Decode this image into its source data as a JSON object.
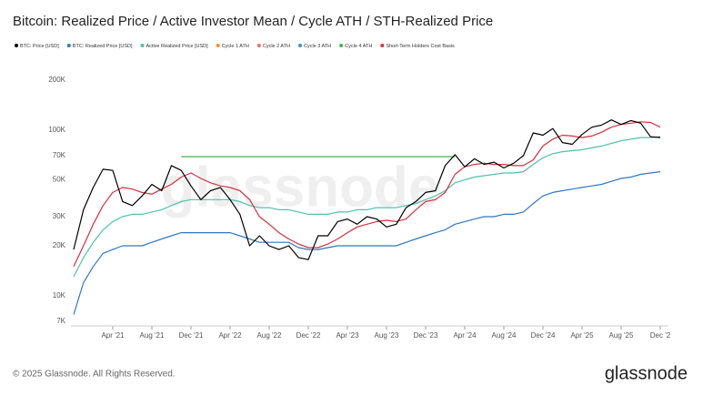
{
  "chart_data": {
    "type": "line",
    "title": "Bitcoin: Realized Price / Active Investor Mean / Cycle ATH / STH-Realized Price",
    "watermark": "glassnode",
    "footer": "© 2025 Glassnode. All Rights Reserved.",
    "logo": "glassnode",
    "y_scale": "log",
    "grid": false,
    "legend_position": "top",
    "x": [
      "2020-12",
      "2021-01",
      "2021-02",
      "2021-03",
      "2021-04",
      "2021-05",
      "2021-06",
      "2021-07",
      "2021-08",
      "2021-09",
      "2021-10",
      "2021-11",
      "2021-12",
      "2022-01",
      "2022-02",
      "2022-03",
      "2022-04",
      "2022-05",
      "2022-06",
      "2022-07",
      "2022-08",
      "2022-09",
      "2022-10",
      "2022-11",
      "2022-12",
      "2023-01",
      "2023-02",
      "2023-03",
      "2023-04",
      "2023-05",
      "2023-06",
      "2023-07",
      "2023-08",
      "2023-09",
      "2023-10",
      "2023-11",
      "2023-12",
      "2024-01",
      "2024-02",
      "2024-03",
      "2024-04",
      "2024-05",
      "2024-06",
      "2024-07",
      "2024-08",
      "2024-09",
      "2024-10",
      "2024-11",
      "2024-12",
      "2025-01",
      "2025-02",
      "2025-03",
      "2025-04",
      "2025-05",
      "2025-06",
      "2025-07",
      "2025-08",
      "2025-09",
      "2025-10",
      "2025-11",
      "2025-12"
    ],
    "xlim": [
      "2020-12",
      "2025-12"
    ],
    "xticks": [
      {
        "value": "2021-04",
        "label": "Apr '21"
      },
      {
        "value": "2021-08",
        "label": "Aug '21"
      },
      {
        "value": "2021-12",
        "label": "Dec '21"
      },
      {
        "value": "2022-04",
        "label": "Apr '22"
      },
      {
        "value": "2022-08",
        "label": "Aug '22"
      },
      {
        "value": "2022-12",
        "label": "Dec '22"
      },
      {
        "value": "2023-04",
        "label": "Apr '23"
      },
      {
        "value": "2023-08",
        "label": "Aug '23"
      },
      {
        "value": "2023-12",
        "label": "Dec '23"
      },
      {
        "value": "2024-04",
        "label": "Apr '24"
      },
      {
        "value": "2024-08",
        "label": "Aug '24"
      },
      {
        "value": "2024-12",
        "label": "Dec '24"
      },
      {
        "value": "2025-04",
        "label": "Apr '25"
      },
      {
        "value": "2025-08",
        "label": "Aug '25"
      },
      {
        "value": "2025-12",
        "label": "Dec '2"
      }
    ],
    "ylim": [
      7000,
      200000
    ],
    "yticks": [
      {
        "value": 7000,
        "label": "7K"
      },
      {
        "value": 10000,
        "label": "10K"
      },
      {
        "value": 20000,
        "label": "20K"
      },
      {
        "value": 30000,
        "label": "30K"
      },
      {
        "value": 50000,
        "label": "50K"
      },
      {
        "value": 70000,
        "label": "70K"
      },
      {
        "value": 100000,
        "label": "100K"
      },
      {
        "value": 200000,
        "label": "200K"
      }
    ],
    "series": [
      {
        "name": "BTC: Price [USD]",
        "color": "#000000",
        "width": 1.2,
        "values": [
          19000,
          33000,
          45000,
          58000,
          57000,
          37000,
          35000,
          40000,
          47000,
          43000,
          61000,
          57000,
          46000,
          38000,
          43000,
          45000,
          38000,
          31000,
          20000,
          23000,
          20000,
          19000,
          20000,
          17000,
          16500,
          23000,
          23000,
          28000,
          29000,
          27000,
          30000,
          29000,
          26000,
          27000,
          34000,
          37000,
          42000,
          43000,
          61000,
          71000,
          60000,
          67000,
          62000,
          64000,
          59000,
          63000,
          70000,
          96000,
          93000,
          102000,
          84000,
          82000,
          94000,
          104000,
          107000,
          115000,
          108000,
          114000,
          110000,
          91000,
          90000
        ]
      },
      {
        "name": "BTC: Realized Price [USD]",
        "color": "#2f78c4",
        "width": 1.2,
        "values": [
          7700,
          12000,
          15000,
          18000,
          19000,
          20000,
          20000,
          20000,
          21000,
          22000,
          23000,
          24000,
          24000,
          24000,
          24000,
          24000,
          24000,
          23000,
          22000,
          21000,
          21000,
          21000,
          21000,
          19500,
          19000,
          19000,
          19500,
          20000,
          20000,
          20000,
          20000,
          20000,
          20000,
          20000,
          21000,
          22000,
          23000,
          24000,
          25000,
          27000,
          28000,
          29000,
          30000,
          30000,
          31000,
          31000,
          32000,
          36000,
          40000,
          42000,
          43000,
          44000,
          45000,
          46000,
          47000,
          49000,
          51000,
          52000,
          54000,
          55000,
          56000
        ]
      },
      {
        "name": "Active Realized Price [USD]",
        "color": "#4cc2ad",
        "width": 1.2,
        "values": [
          13000,
          17000,
          21000,
          25000,
          28000,
          30000,
          31000,
          31000,
          32000,
          33000,
          35000,
          37000,
          38000,
          38000,
          38000,
          38000,
          38000,
          37000,
          35000,
          34000,
          34000,
          33000,
          33000,
          32000,
          31000,
          31000,
          31000,
          32000,
          32000,
          33000,
          33000,
          34000,
          34000,
          34000,
          35000,
          36000,
          38000,
          40000,
          43000,
          48000,
          50000,
          52000,
          53000,
          54000,
          55000,
          55000,
          56000,
          62000,
          68000,
          72000,
          74000,
          75000,
          76000,
          78000,
          80000,
          83000,
          86000,
          88000,
          90000,
          90000,
          91000
        ]
      },
      {
        "name": "Cycle 1 ATH",
        "color": "#f7931a",
        "width": 1.2,
        "values": [
          null,
          null,
          null,
          null,
          null,
          null,
          null,
          null,
          null,
          null,
          null,
          null,
          null,
          null,
          null,
          null,
          null,
          null,
          null,
          null,
          null,
          null,
          null,
          null,
          null,
          null,
          null,
          null,
          null,
          null,
          null,
          null,
          null,
          null,
          null,
          null,
          null,
          null,
          null,
          null,
          null,
          null,
          null,
          null,
          null,
          null,
          null,
          null,
          null,
          null,
          null,
          null,
          null,
          null,
          null,
          null,
          null,
          null,
          null,
          null,
          null
        ]
      },
      {
        "name": "Cycle 2 ATH",
        "color": "#f06e6e",
        "width": 1.2,
        "values": [
          null,
          null,
          null,
          null,
          null,
          null,
          null,
          null,
          null,
          null,
          null,
          null,
          null,
          null,
          null,
          null,
          null,
          null,
          null,
          null,
          null,
          null,
          null,
          null,
          null,
          null,
          null,
          null,
          null,
          null,
          null,
          null,
          null,
          null,
          null,
          null,
          null,
          null,
          null,
          null,
          null,
          null,
          null,
          null,
          null,
          null,
          null,
          null,
          null,
          null,
          null,
          null,
          null,
          null,
          null,
          null,
          null,
          null,
          null,
          null,
          null
        ]
      },
      {
        "name": "Cycle 3 ATH",
        "color": "#3f8fd6",
        "width": 1.2,
        "values": [
          null,
          null,
          null,
          null,
          null,
          null,
          null,
          null,
          null,
          null,
          null,
          null,
          null,
          null,
          null,
          null,
          null,
          null,
          null,
          null,
          null,
          null,
          null,
          null,
          null,
          null,
          null,
          null,
          null,
          null,
          null,
          null,
          null,
          null,
          null,
          null,
          null,
          null,
          null,
          null,
          null,
          null,
          null,
          null,
          null,
          null,
          null,
          null,
          null,
          null,
          null,
          null,
          null,
          null,
          null,
          null,
          null,
          null,
          null,
          null,
          null
        ]
      },
      {
        "name": "Cycle 4 ATH",
        "color": "#3cb44b",
        "width": 1.2,
        "values": [
          null,
          null,
          null,
          null,
          null,
          null,
          null,
          null,
          null,
          null,
          null,
          69000,
          69000,
          69000,
          69000,
          69000,
          69000,
          69000,
          69000,
          69000,
          69000,
          69000,
          69000,
          69000,
          69000,
          69000,
          69000,
          69000,
          69000,
          69000,
          69000,
          69000,
          69000,
          69000,
          69000,
          69000,
          69000,
          69000,
          69000,
          69000,
          null,
          null,
          null,
          null,
          null,
          null,
          null,
          null,
          null,
          null,
          null,
          null,
          null,
          null,
          null,
          null,
          null,
          null,
          null,
          null,
          null
        ]
      },
      {
        "name": "Short-Term Holders Cost Basis",
        "color": "#d62f3c",
        "width": 1.2,
        "values": [
          15000,
          20000,
          27000,
          35000,
          42000,
          45000,
          44000,
          42000,
          41000,
          44000,
          47000,
          52000,
          55000,
          51000,
          48000,
          46000,
          45000,
          43000,
          38000,
          30000,
          27000,
          24000,
          22000,
          20500,
          19500,
          19500,
          20500,
          22000,
          24000,
          26000,
          27000,
          28000,
          28500,
          28000,
          29000,
          33000,
          37000,
          38000,
          42000,
          54000,
          60000,
          62000,
          63000,
          62000,
          62000,
          61000,
          61000,
          66000,
          80000,
          88000,
          93000,
          92000,
          90000,
          92000,
          97000,
          104000,
          108000,
          110000,
          112000,
          111000,
          104000
        ]
      }
    ]
  }
}
